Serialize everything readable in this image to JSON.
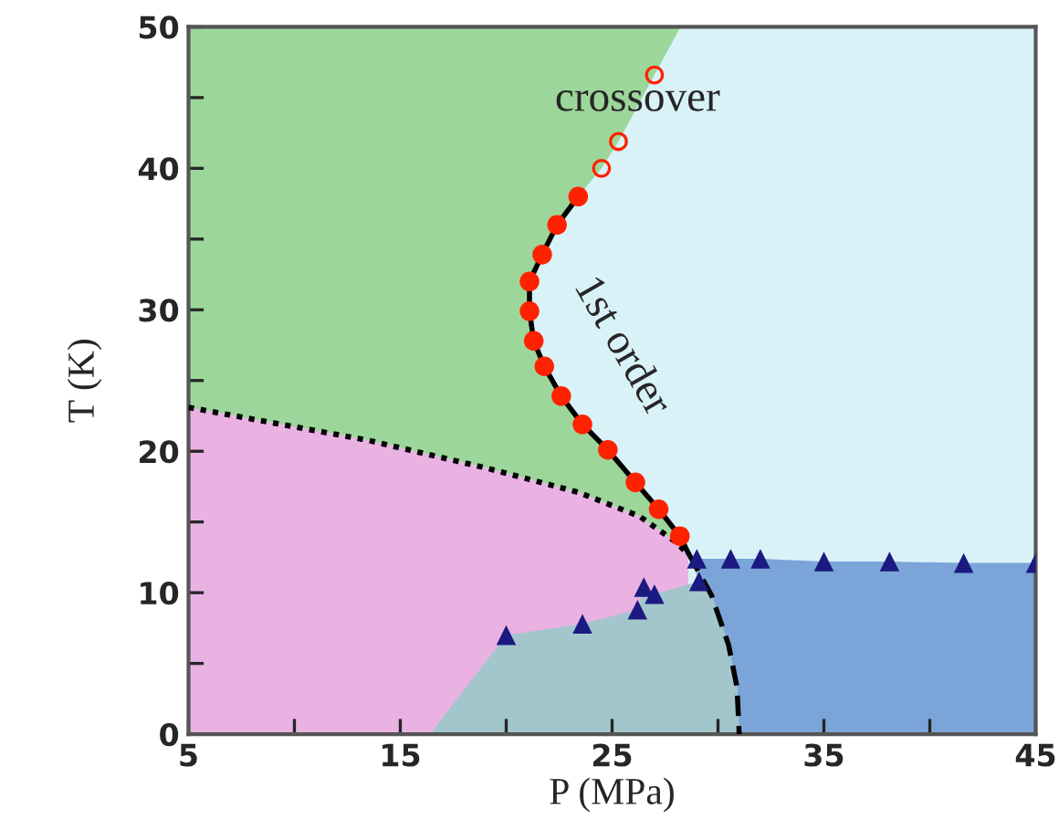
{
  "chart_data": {
    "type": "scatter",
    "xlabel": "P (MPa)",
    "ylabel": "T (K)",
    "xlim": [
      5,
      45
    ],
    "ylim": [
      0,
      50
    ],
    "xticks": [
      5,
      {
        "value": 10,
        "label": null
      },
      15,
      {
        "value": 20,
        "label": null
      },
      25,
      {
        "value": 30,
        "label": null
      },
      35,
      {
        "value": 40,
        "label": null
      },
      45
    ],
    "yticks": [
      0,
      {
        "value": 5,
        "label": null
      },
      10,
      {
        "value": 15,
        "label": null
      },
      20,
      {
        "value": 25,
        "label": null
      },
      30,
      {
        "value": 35,
        "label": null
      },
      40,
      {
        "value": 45,
        "label": null
      },
      50
    ],
    "grid": false,
    "legend": false,
    "series": [
      {
        "type": "line",
        "color": "#000000",
        "line_style": "solid",
        "marker": "none",
        "x": [
          23.4,
          22.4,
          21.7,
          21.1,
          21.1,
          21.3,
          21.8,
          22.6,
          23.6,
          24.8,
          26.1,
          27.2,
          28.2,
          28.6
        ],
        "values": [
          38.0,
          36.0,
          33.9,
          32.0,
          29.9,
          27.8,
          26.0,
          23.9,
          21.9,
          20.1,
          17.8,
          15.9,
          14.0,
          12.8
        ]
      },
      {
        "type": "line",
        "color": "#000000",
        "line_style": "dotted",
        "marker": "none",
        "x": [
          5,
          13.4,
          19.1,
          23.4,
          26.3,
          28.0,
          28.6
        ],
        "values": [
          23.1,
          20.8,
          18.8,
          17.1,
          15.4,
          13.6,
          12.7
        ]
      },
      {
        "type": "line",
        "color": "#000000",
        "line_style": "dashed",
        "marker": "none",
        "x": [
          28.6,
          29.7,
          30.5,
          30.9,
          31.0
        ],
        "values": [
          12.8,
          9.8,
          6.3,
          3.3,
          0
        ]
      },
      {
        "color": "#ff2200",
        "marker": "circle",
        "x": [
          23.4,
          22.4,
          21.7,
          21.1,
          21.1,
          21.3,
          21.8,
          22.6,
          23.6,
          24.8,
          26.1,
          27.2,
          28.2
        ],
        "values": [
          38.0,
          36.0,
          33.9,
          32.0,
          29.9,
          27.8,
          26.0,
          23.9,
          21.9,
          20.1,
          17.8,
          15.9,
          14.0
        ]
      },
      {
        "color": "#ff2200",
        "x": [
          24.5,
          25.3,
          27.0
        ],
        "values": [
          40.0,
          41.9,
          46.6
        ]
      },
      {
        "color": "#1a1a80",
        "marker": "triangle",
        "x": [
          29.0,
          30.6,
          32.0,
          35.0,
          38.1,
          41.6,
          45.0
        ],
        "values": [
          12.4,
          12.4,
          12.4,
          12.2,
          12.2,
          12.1,
          12.1
        ]
      },
      {
        "color": "#1a1a80",
        "marker": "triangle",
        "x": [
          20.0,
          23.6,
          26.2,
          27.0,
          26.5,
          29.1
        ],
        "values": [
          7.0,
          7.8,
          8.8,
          9.9,
          10.4,
          10.8
        ]
      }
    ],
    "annotations": [
      "crossover",
      "1st order"
    ]
  }
}
